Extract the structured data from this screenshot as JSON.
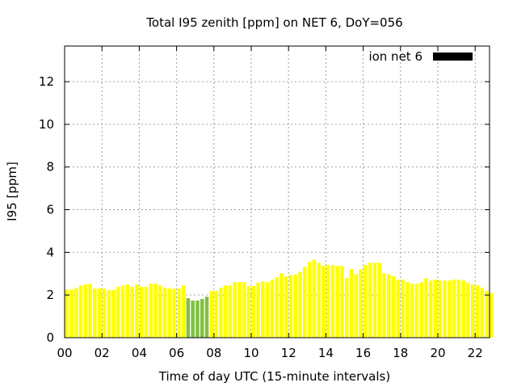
{
  "chart_data": {
    "type": "bar",
    "title": "Total I95 zenith [ppm] on NET 6, DoY=056",
    "xlabel": "Time of day UTC (15-minute intervals)",
    "ylabel": "I95 [ppm]",
    "xlim": [
      0,
      22.77
    ],
    "ylim": [
      0,
      13.67
    ],
    "x_step_hours": 0.25,
    "xticks": [
      "00",
      "02",
      "04",
      "06",
      "08",
      "10",
      "12",
      "14",
      "16",
      "18",
      "20",
      "22"
    ],
    "yticks": [
      "0",
      "2",
      "4",
      "6",
      "8",
      "10",
      "12"
    ],
    "grid": true,
    "legend": {
      "label": "ion net 6",
      "placement": "top-right",
      "color": "#000000"
    },
    "colors": {
      "normal": "#ffff00",
      "flagged": "#80c040"
    },
    "flagged_indices": [
      26,
      27,
      28,
      29,
      30
    ],
    "values": [
      2.25,
      2.25,
      2.33,
      2.45,
      2.49,
      2.53,
      2.3,
      2.3,
      2.3,
      2.23,
      2.23,
      2.38,
      2.45,
      2.49,
      2.38,
      2.49,
      2.38,
      2.38,
      2.53,
      2.53,
      2.45,
      2.34,
      2.3,
      2.3,
      2.3,
      2.45,
      1.85,
      1.74,
      1.74,
      1.81,
      1.92,
      2.19,
      2.19,
      2.34,
      2.45,
      2.45,
      2.6,
      2.6,
      2.6,
      2.42,
      2.42,
      2.57,
      2.64,
      2.6,
      2.72,
      2.83,
      3.02,
      2.87,
      2.94,
      2.94,
      3.09,
      3.32,
      3.55,
      3.66,
      3.51,
      3.36,
      3.4,
      3.4,
      3.36,
      3.36,
      2.79,
      3.21,
      2.98,
      3.21,
      3.4,
      3.51,
      3.51,
      3.51,
      3.02,
      2.98,
      2.87,
      2.72,
      2.72,
      2.6,
      2.53,
      2.53,
      2.6,
      2.79,
      2.68,
      2.72,
      2.68,
      2.68,
      2.68,
      2.72,
      2.72,
      2.68,
      2.57,
      2.49,
      2.45,
      2.34,
      2.19,
      2.08
    ]
  }
}
